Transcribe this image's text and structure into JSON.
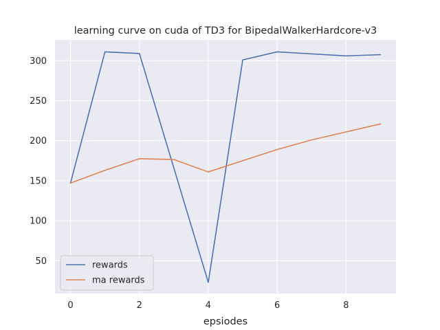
{
  "chart_data": {
    "type": "line",
    "title": "learning curve on cuda of TD3 for BipedalWalkerHardcore-v3",
    "xlabel": "epsiodes",
    "ylabel": "",
    "x": [
      0,
      1,
      2,
      3,
      4,
      5,
      6,
      7,
      8,
      9
    ],
    "xlim": [
      -0.45,
      9.45
    ],
    "ylim": [
      9,
      326
    ],
    "xticks": [
      0,
      2,
      4,
      6,
      8
    ],
    "yticks": [
      50,
      100,
      150,
      200,
      250,
      300
    ],
    "grid": true,
    "background": "#eaeaf2",
    "legend": {
      "placement": "lower-left"
    },
    "series": [
      {
        "name": "rewards",
        "color": "#4c72b0",
        "values": [
          147,
          311,
          309,
          166,
          23,
          301,
          311,
          308.5,
          306,
          307.5
        ]
      },
      {
        "name": "ma rewards",
        "color": "#dd8452",
        "values": [
          147,
          163,
          177.5,
          176.5,
          161,
          175,
          189,
          201,
          211,
          221
        ]
      }
    ]
  }
}
